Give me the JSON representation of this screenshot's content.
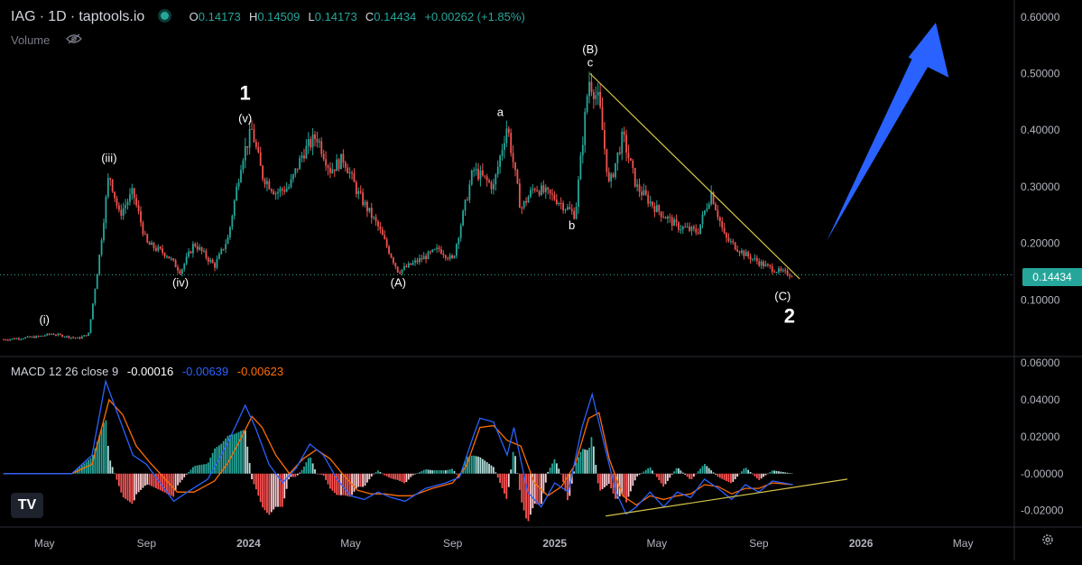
{
  "header": {
    "symbol": "IAG",
    "interval": "1D",
    "source": "taptools.io",
    "sep": "·",
    "o_label": "O",
    "o_value": "0.14173",
    "h_label": "H",
    "h_value": "0.14509",
    "l_label": "L",
    "l_value": "0.14173",
    "c_label": "C",
    "c_value": "0.14434",
    "change": "+0.00262 (+1.85%)",
    "status_color": "#26a69a"
  },
  "volume": {
    "label": "Volume",
    "icon": "eye-off-icon"
  },
  "macd_legend": {
    "label": "MACD 12 26 close 9",
    "hist": "-0.00016",
    "macd": "-0.00639",
    "signal": "-0.00623"
  },
  "last_price_tag": "0.14434",
  "logo": "TV",
  "settings_icon": "gear-icon",
  "colors": {
    "up": "#26a69a",
    "down": "#ef5350",
    "macd": "#2962ff",
    "signal": "#ff6d00",
    "trendline": "#d4c44a",
    "arrow": "#2962ff",
    "background": "#000000"
  },
  "chart_data": [
    {
      "type": "candlestick",
      "title": "",
      "x_axis_labels": [
        "May",
        "Sep",
        "2024",
        "May",
        "Sep",
        "2025",
        "May",
        "Sep",
        "2026",
        "May"
      ],
      "x_axis_label_t": [
        0.06,
        0.21,
        0.36,
        0.51,
        0.66,
        0.81,
        0.96,
        1.11,
        1.26,
        1.41
      ],
      "ylim": [
        0.0,
        0.63
      ],
      "yticks": [
        "0.60000",
        "0.50000",
        "0.40000",
        "0.30000",
        "0.20000",
        "0.10000"
      ],
      "ytick_values": [
        0.6,
        0.5,
        0.4,
        0.3,
        0.2,
        0.1
      ],
      "last_price": 0.14434,
      "price_path": [
        [
          0.0,
          0.03
        ],
        [
          0.05,
          0.035
        ],
        [
          0.07,
          0.04
        ],
        [
          0.11,
          0.032
        ],
        [
          0.125,
          0.04
        ],
        [
          0.14,
          0.17
        ],
        [
          0.155,
          0.325
        ],
        [
          0.17,
          0.25
        ],
        [
          0.19,
          0.29
        ],
        [
          0.21,
          0.2
        ],
        [
          0.24,
          0.18
        ],
        [
          0.26,
          0.15
        ],
        [
          0.28,
          0.2
        ],
        [
          0.31,
          0.16
        ],
        [
          0.33,
          0.21
        ],
        [
          0.35,
          0.35
        ],
        [
          0.365,
          0.4
        ],
        [
          0.38,
          0.32
        ],
        [
          0.4,
          0.29
        ],
        [
          0.42,
          0.3
        ],
        [
          0.44,
          0.36
        ],
        [
          0.46,
          0.39
        ],
        [
          0.48,
          0.33
        ],
        [
          0.5,
          0.35
        ],
        [
          0.52,
          0.29
        ],
        [
          0.55,
          0.23
        ],
        [
          0.58,
          0.15
        ],
        [
          0.61,
          0.17
        ],
        [
          0.64,
          0.19
        ],
        [
          0.66,
          0.17
        ],
        [
          0.69,
          0.33
        ],
        [
          0.72,
          0.3
        ],
        [
          0.74,
          0.41
        ],
        [
          0.76,
          0.26
        ],
        [
          0.78,
          0.3
        ],
        [
          0.81,
          0.28
        ],
        [
          0.84,
          0.25
        ],
        [
          0.86,
          0.49
        ],
        [
          0.875,
          0.45
        ],
        [
          0.89,
          0.3
        ],
        [
          0.91,
          0.39
        ],
        [
          0.93,
          0.3
        ],
        [
          0.96,
          0.26
        ],
        [
          0.99,
          0.23
        ],
        [
          1.02,
          0.22
        ],
        [
          1.04,
          0.29
        ],
        [
          1.06,
          0.21
        ],
        [
          1.09,
          0.18
        ],
        [
          1.12,
          0.16
        ],
        [
          1.14,
          0.15
        ],
        [
          1.16,
          0.144
        ]
      ],
      "wave_labels": [
        {
          "text": "(i)",
          "t": 0.06,
          "price": 0.058,
          "size": "small"
        },
        {
          "text": "(iii)",
          "t": 0.155,
          "price": 0.344,
          "size": "small"
        },
        {
          "text": "(iv)",
          "t": 0.26,
          "price": 0.124,
          "size": "small"
        },
        {
          "text": "1",
          "t": 0.355,
          "price": 0.454,
          "size": "large"
        },
        {
          "text": "(v)",
          "t": 0.355,
          "price": 0.414,
          "size": "small"
        },
        {
          "text": "(A)",
          "t": 0.58,
          "price": 0.124,
          "size": "small"
        },
        {
          "text": "a",
          "t": 0.73,
          "price": 0.425,
          "size": "small"
        },
        {
          "text": "b",
          "t": 0.835,
          "price": 0.225,
          "size": "small"
        },
        {
          "text": "(B)",
          "t": 0.862,
          "price": 0.536,
          "size": "small"
        },
        {
          "text": "c",
          "t": 0.862,
          "price": 0.513,
          "size": "small"
        },
        {
          "text": "(C)",
          "t": 1.145,
          "price": 0.1,
          "size": "small"
        },
        {
          "text": "2",
          "t": 1.155,
          "price": 0.06,
          "size": "large"
        }
      ],
      "trendline": [
        [
          0.862,
          0.5
        ],
        [
          1.17,
          0.137
        ]
      ],
      "arrow": {
        "from": [
          1.21,
          0.205
        ],
        "to": [
          1.37,
          0.59
        ]
      }
    },
    {
      "type": "line",
      "title": "MACD 12 26 close 9",
      "ylim": [
        -0.028,
        0.062
      ],
      "yticks": [
        "0.06000",
        "0.04000",
        "0.02000",
        "-0.00000",
        "-0.02000"
      ],
      "ytick_values": [
        0.06,
        0.04,
        0.02,
        0.0,
        -0.02
      ],
      "series": [
        {
          "name": "MACD",
          "points": [
            [
              0.0,
              0.0
            ],
            [
              0.1,
              0.0
            ],
            [
              0.13,
              0.01
            ],
            [
              0.15,
              0.05
            ],
            [
              0.17,
              0.03
            ],
            [
              0.19,
              0.01
            ],
            [
              0.21,
              0.005
            ],
            [
              0.23,
              -0.005
            ],
            [
              0.25,
              -0.015
            ],
            [
              0.27,
              -0.01
            ],
            [
              0.3,
              -0.003
            ],
            [
              0.32,
              0.01
            ],
            [
              0.34,
              0.025
            ],
            [
              0.355,
              0.037
            ],
            [
              0.37,
              0.025
            ],
            [
              0.39,
              0.005
            ],
            [
              0.41,
              -0.005
            ],
            [
              0.43,
              0.003
            ],
            [
              0.45,
              0.016
            ],
            [
              0.47,
              0.01
            ],
            [
              0.49,
              -0.003
            ],
            [
              0.51,
              -0.012
            ],
            [
              0.53,
              -0.014
            ],
            [
              0.55,
              -0.01
            ],
            [
              0.57,
              -0.013
            ],
            [
              0.59,
              -0.015
            ],
            [
              0.62,
              -0.008
            ],
            [
              0.65,
              -0.005
            ],
            [
              0.67,
              -0.002
            ],
            [
              0.69,
              0.02
            ],
            [
              0.7,
              0.03
            ],
            [
              0.72,
              0.028
            ],
            [
              0.74,
              0.01
            ],
            [
              0.75,
              0.025
            ],
            [
              0.77,
              -0.01
            ],
            [
              0.79,
              -0.018
            ],
            [
              0.81,
              -0.005
            ],
            [
              0.83,
              -0.01
            ],
            [
              0.85,
              0.025
            ],
            [
              0.865,
              0.043
            ],
            [
              0.88,
              0.02
            ],
            [
              0.9,
              -0.01
            ],
            [
              0.915,
              -0.022
            ],
            [
              0.93,
              -0.018
            ],
            [
              0.95,
              -0.01
            ],
            [
              0.97,
              -0.018
            ],
            [
              0.99,
              -0.01
            ],
            [
              1.01,
              -0.013
            ],
            [
              1.03,
              -0.003
            ],
            [
              1.05,
              -0.008
            ],
            [
              1.07,
              -0.014
            ],
            [
              1.09,
              -0.006
            ],
            [
              1.11,
              -0.01
            ],
            [
              1.13,
              -0.004
            ],
            [
              1.16,
              -0.006
            ]
          ]
        },
        {
          "name": "Signal",
          "points": [
            [
              0.0,
              0.0
            ],
            [
              0.1,
              0.0
            ],
            [
              0.13,
              0.005
            ],
            [
              0.155,
              0.04
            ],
            [
              0.175,
              0.032
            ],
            [
              0.195,
              0.015
            ],
            [
              0.215,
              0.006
            ],
            [
              0.235,
              -0.002
            ],
            [
              0.255,
              -0.01
            ],
            [
              0.28,
              -0.01
            ],
            [
              0.31,
              -0.004
            ],
            [
              0.33,
              0.006
            ],
            [
              0.35,
              0.02
            ],
            [
              0.365,
              0.031
            ],
            [
              0.38,
              0.025
            ],
            [
              0.4,
              0.01
            ],
            [
              0.42,
              0.0
            ],
            [
              0.44,
              0.008
            ],
            [
              0.46,
              0.013
            ],
            [
              0.48,
              0.008
            ],
            [
              0.5,
              -0.001
            ],
            [
              0.52,
              -0.009
            ],
            [
              0.54,
              -0.011
            ],
            [
              0.56,
              -0.011
            ],
            [
              0.58,
              -0.012
            ],
            [
              0.6,
              -0.012
            ],
            [
              0.63,
              -0.008
            ],
            [
              0.66,
              -0.005
            ],
            [
              0.68,
              0.004
            ],
            [
              0.7,
              0.025
            ],
            [
              0.72,
              0.026
            ],
            [
              0.74,
              0.018
            ],
            [
              0.76,
              0.015
            ],
            [
              0.78,
              -0.005
            ],
            [
              0.8,
              -0.012
            ],
            [
              0.82,
              -0.007
            ],
            [
              0.84,
              0.005
            ],
            [
              0.86,
              0.03
            ],
            [
              0.875,
              0.033
            ],
            [
              0.89,
              0.008
            ],
            [
              0.91,
              -0.012
            ],
            [
              0.93,
              -0.017
            ],
            [
              0.95,
              -0.012
            ],
            [
              0.97,
              -0.014
            ],
            [
              0.99,
              -0.012
            ],
            [
              1.01,
              -0.011
            ],
            [
              1.03,
              -0.006
            ],
            [
              1.05,
              -0.007
            ],
            [
              1.07,
              -0.011
            ],
            [
              1.09,
              -0.008
            ],
            [
              1.11,
              -0.008
            ],
            [
              1.13,
              -0.005
            ],
            [
              1.16,
              -0.006
            ]
          ]
        }
      ],
      "trendline": [
        [
          0.885,
          -0.023
        ],
        [
          1.24,
          -0.003
        ]
      ]
    }
  ]
}
